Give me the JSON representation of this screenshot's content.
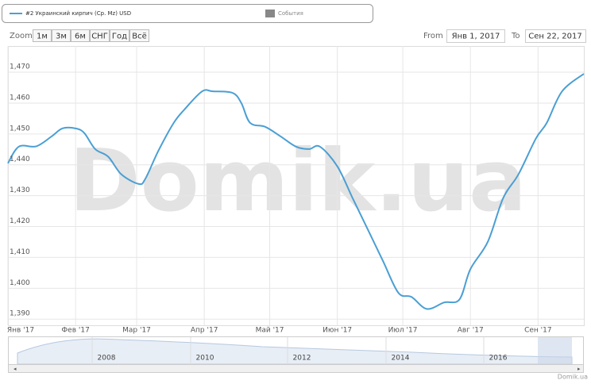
{
  "chart_data": {
    "type": "line",
    "legend_label": "#2 Украинский кирпич (Ср. Мz) USD",
    "events_label": "События",
    "zoom_label": "Zoom",
    "zoom_buttons": [
      "1м",
      "3м",
      "6м",
      "СНГ",
      "Год",
      "Всё"
    ],
    "from_label": "From",
    "from_value": "Янв 1, 2017",
    "to_label": "To",
    "to_value": "Сен 22, 2017",
    "watermark": "Domik.ua",
    "credit": "Domik.ua",
    "navigator_labels": [
      "2008",
      "2010",
      "2012",
      "2014",
      "2016"
    ],
    "xlim": [
      "2017-01-01",
      "2017-09-22"
    ],
    "xticks": [
      {
        "value": "2017-01-01",
        "label": "Янв '17"
      },
      {
        "value": "2017-02-01",
        "label": "Фев '17"
      },
      {
        "value": "2017-03-01",
        "label": "Мар '17"
      },
      {
        "value": "2017-04-01",
        "label": "Апр '17"
      },
      {
        "value": "2017-05-01",
        "label": "Май '17"
      },
      {
        "value": "2017-06-01",
        "label": "Июн '17"
      },
      {
        "value": "2017-07-01",
        "label": "Июл '17"
      },
      {
        "value": "2017-08-01",
        "label": "Авг '17"
      },
      {
        "value": "2017-09-01",
        "label": "Сен '17"
      }
    ],
    "ylim": [
      1388,
      1478.5
    ],
    "yticks": [
      {
        "value": 1390,
        "label": "1,390"
      },
      {
        "value": 1400,
        "label": "1,400"
      },
      {
        "value": 1410,
        "label": "1,410"
      },
      {
        "value": 1420,
        "label": "1,420"
      },
      {
        "value": 1430,
        "label": "1,430"
      },
      {
        "value": 1440,
        "label": "1,440"
      },
      {
        "value": 1450,
        "label": "1,450"
      },
      {
        "value": 1460,
        "label": "1,460"
      },
      {
        "value": 1470,
        "label": "1,470"
      }
    ],
    "grid": true,
    "x": [
      "2017-01-01",
      "2017-01-06",
      "2017-01-14",
      "2017-01-21",
      "2017-01-26",
      "2017-02-01",
      "2017-02-05",
      "2017-02-10",
      "2017-02-16",
      "2017-02-22",
      "2017-03-02",
      "2017-03-05",
      "2017-03-11",
      "2017-03-18",
      "2017-03-23",
      "2017-03-31",
      "2017-04-05",
      "2017-04-14",
      "2017-04-18",
      "2017-04-22",
      "2017-04-29",
      "2017-05-06",
      "2017-05-13",
      "2017-05-19",
      "2017-05-24",
      "2017-06-01",
      "2017-06-08",
      "2017-06-15",
      "2017-06-22",
      "2017-06-29",
      "2017-07-05",
      "2017-07-12",
      "2017-07-20",
      "2017-07-27",
      "2017-08-01",
      "2017-08-09",
      "2017-08-16",
      "2017-08-23",
      "2017-08-31",
      "2017-09-05",
      "2017-09-12",
      "2017-09-22"
    ],
    "series": [
      {
        "name": "#2 Украинский кирпич (Ср. Мz) USD",
        "color": "#4a9fd4",
        "values": [
          1440.5,
          1445.9,
          1446,
          1449.2,
          1451.8,
          1451.8,
          1450.3,
          1445.1,
          1442.6,
          1436.9,
          1433.8,
          1435.5,
          1444.6,
          1453.6,
          1458,
          1463.8,
          1463.8,
          1463.3,
          1460,
          1453.6,
          1452.3,
          1449.2,
          1445.9,
          1445.1,
          1445.9,
          1439.5,
          1429.2,
          1419,
          1408.7,
          1398.5,
          1397.2,
          1393.3,
          1395.4,
          1396.4,
          1406.2,
          1415.1,
          1429.2,
          1436.9,
          1448.5,
          1453.6,
          1463.8,
          1469.5
        ]
      }
    ]
  }
}
